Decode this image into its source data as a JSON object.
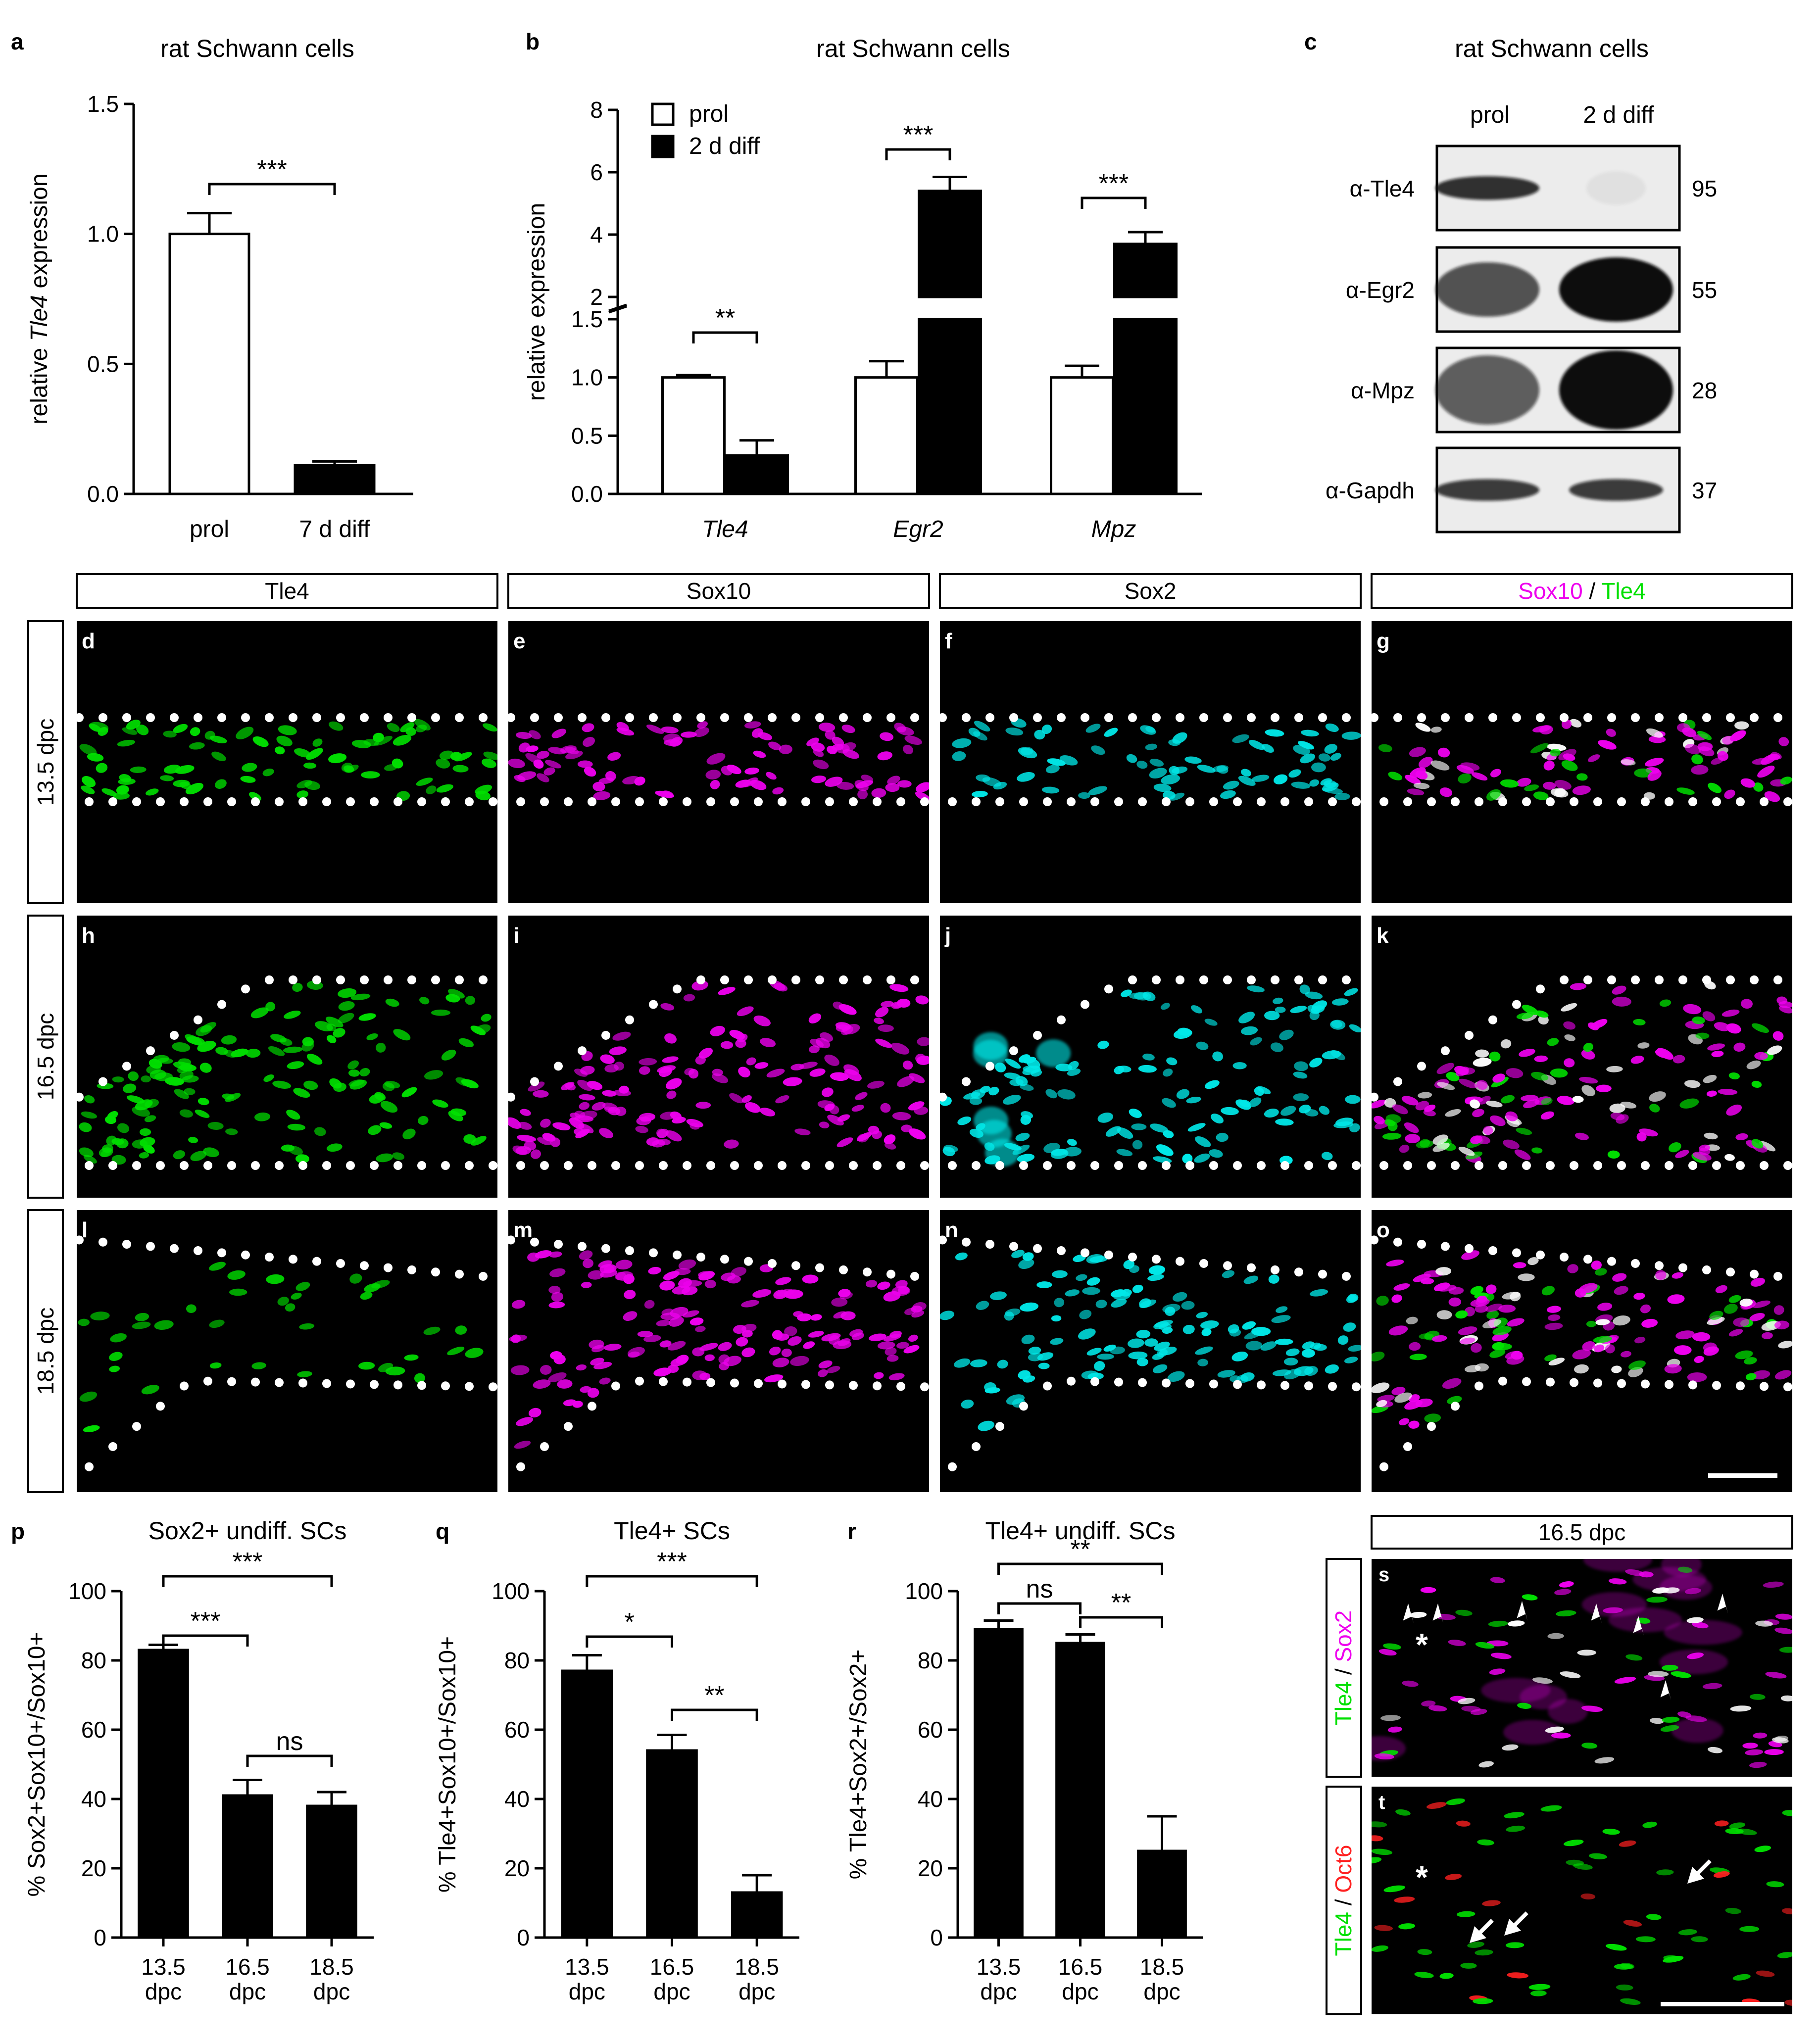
{
  "colors": {
    "tle4": "#00e000",
    "sox10": "#ee00ee",
    "sox2": "#00e8e8",
    "oct6": "#ff2020",
    "white": "#ffffff"
  },
  "panels": {
    "a": {
      "label": "a"
    },
    "b": {
      "label": "b"
    },
    "c": {
      "label": "c"
    },
    "d": {
      "label": "d"
    },
    "e": {
      "label": "e"
    },
    "f": {
      "label": "f"
    },
    "g": {
      "label": "g"
    },
    "h": {
      "label": "h"
    },
    "i": {
      "label": "i"
    },
    "j": {
      "label": "j"
    },
    "k": {
      "label": "k"
    },
    "l": {
      "label": "l"
    },
    "m": {
      "label": "m"
    },
    "n": {
      "label": "n"
    },
    "o": {
      "label": "o"
    },
    "p": {
      "label": "p"
    },
    "q": {
      "label": "q"
    },
    "r": {
      "label": "r"
    },
    "s": {
      "label": "s"
    },
    "t": {
      "label": "t"
    }
  },
  "western": {
    "title": "rat Schwann cells",
    "lanes": [
      "prol",
      "2 d diff"
    ],
    "rows": [
      {
        "antibody": "α-Tle4",
        "kda": "95"
      },
      {
        "antibody": "α-Egr2",
        "kda": "55"
      },
      {
        "antibody": "α-Mpz",
        "kda": "28"
      },
      {
        "antibody": "α-Gapdh",
        "kda": "37"
      }
    ]
  },
  "micro": {
    "columns": [
      {
        "text": "Tle4",
        "color": "#00e000"
      },
      {
        "text": "Sox10",
        "color": "#ee00ee"
      },
      {
        "text": "Sox2",
        "color": "#00e8e8"
      }
    ],
    "merge_header": {
      "a": "Sox10",
      "sep": " / ",
      "b": "Tle4"
    },
    "rows": [
      "13.5 dpc",
      "16.5 dpc",
      "18.5 dpc"
    ],
    "st_header": "16.5 dpc",
    "s_side": {
      "a": "Tle4",
      "sep": " / ",
      "b": "Sox2"
    },
    "t_side": {
      "a": "Tle4",
      "sep": " / ",
      "b": "Oct6"
    },
    "asterisk": "*"
  },
  "chart_data": [
    {
      "id": "a",
      "type": "bar",
      "title": "rat Schwann cells",
      "categories": [
        "prol",
        "7 d diff"
      ],
      "values": [
        1.0,
        0.11
      ],
      "errors": [
        0.08,
        0.015
      ],
      "fill": [
        "#ffffff",
        "#000000"
      ],
      "ylabel": {
        "pre": "relative ",
        "it": "Tle4",
        "post": " expression"
      },
      "ylim": [
        0,
        1.5
      ],
      "yticks": [
        "0.0",
        "0.5",
        "1.0",
        "1.5"
      ],
      "significance": [
        {
          "text": "***",
          "from": 0,
          "to": 1
        }
      ]
    },
    {
      "id": "b",
      "type": "bar",
      "title": "rat Schwann cells",
      "categories": [
        "Tle4",
        "Egr2",
        "Mpz"
      ],
      "series": [
        {
          "name": "prol",
          "values": [
            1.0,
            1.0,
            1.0
          ],
          "errors": [
            0.02,
            0.14,
            0.1
          ]
        },
        {
          "name": "2 d diff",
          "values": [
            0.33,
            5.4,
            3.7
          ],
          "errors": [
            0.13,
            0.45,
            0.38
          ]
        }
      ],
      "ylabel": "relative expression",
      "ylim_lower": [
        0,
        1.5
      ],
      "ylim_upper": [
        2,
        8
      ],
      "yticks_lower": [
        "0.0",
        "0.5",
        "1.0",
        "1.5"
      ],
      "yticks_upper": [
        "2",
        "4",
        "6",
        "8"
      ],
      "significance": [
        "**",
        "***",
        "***"
      ]
    },
    {
      "id": "p",
      "type": "bar",
      "title": "Sox2+ undiff. SCs",
      "categories": [
        "13.5\ndpc",
        "16.5\ndpc",
        "18.5\ndpc"
      ],
      "cat_top": [
        "13.5",
        "16.5",
        "18.5"
      ],
      "cat_bottom": [
        "dpc",
        "dpc",
        "dpc"
      ],
      "values": [
        83,
        41,
        38
      ],
      "errors": [
        1.5,
        4.5,
        4
      ],
      "ylabel": "% Sox2+Sox10+/Sox10+",
      "ylim": [
        0,
        100
      ],
      "yticks": [
        "0",
        "20",
        "40",
        "60",
        "80",
        "100"
      ],
      "significance": [
        {
          "text": "***",
          "from": 0,
          "to": 1
        },
        {
          "text": "ns",
          "from": 1,
          "to": 2
        },
        {
          "text": "***",
          "from": 0,
          "to": 2
        }
      ]
    },
    {
      "id": "q",
      "type": "bar",
      "title": "Tle4+ SCs",
      "categories": [
        "13.5\ndpc",
        "16.5\ndpc",
        "18.5\ndpc"
      ],
      "cat_top": [
        "13.5",
        "16.5",
        "18.5"
      ],
      "cat_bottom": [
        "dpc",
        "dpc",
        "dpc"
      ],
      "values": [
        77,
        54,
        13
      ],
      "errors": [
        4.5,
        4.5,
        5
      ],
      "ylabel": "% Tle4+Sox10+/Sox10+",
      "ylim": [
        0,
        100
      ],
      "yticks": [
        "0",
        "20",
        "40",
        "60",
        "80",
        "100"
      ],
      "significance": [
        {
          "text": "*",
          "from": 0,
          "to": 1
        },
        {
          "text": "**",
          "from": 1,
          "to": 2
        },
        {
          "text": "***",
          "from": 0,
          "to": 2
        }
      ]
    },
    {
      "id": "r",
      "type": "bar",
      "title": "Tle4+ undiff. SCs",
      "categories": [
        "13.5\ndpc",
        "16.5\ndpc",
        "18.5\ndpc"
      ],
      "cat_top": [
        "13.5",
        "16.5",
        "18.5"
      ],
      "cat_bottom": [
        "dpc",
        "dpc",
        "dpc"
      ],
      "values": [
        89,
        85,
        25
      ],
      "errors": [
        2.5,
        2.5,
        10
      ],
      "ylabel": "% Tle4+Sox2+/Sox2+",
      "ylim": [
        0,
        100
      ],
      "yticks": [
        "0",
        "20",
        "40",
        "60",
        "80",
        "100"
      ],
      "significance": [
        {
          "text": "ns",
          "from": 0,
          "to": 1
        },
        {
          "text": "**",
          "from": 1,
          "to": 2
        },
        {
          "text": "**",
          "from": 0,
          "to": 2
        }
      ]
    }
  ]
}
